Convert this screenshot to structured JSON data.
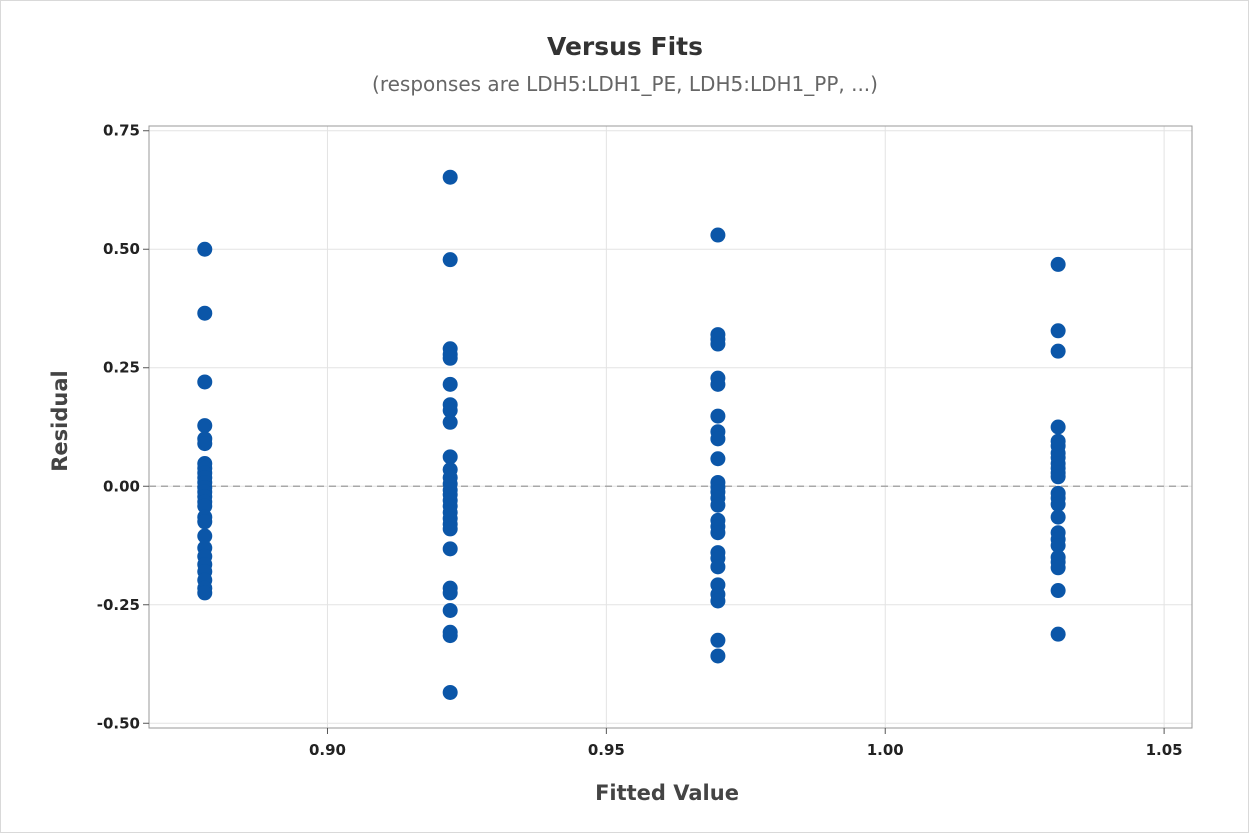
{
  "chart_data": {
    "type": "scatter",
    "title": "Versus Fits",
    "subtitle": "(responses are LDH5:LDH1_PE, LDH5:LDH1_PP, ...)",
    "xlabel": "Fitted Value",
    "ylabel": "Residual",
    "xlim": [
      0.868,
      1.055
    ],
    "ylim": [
      -0.51,
      0.76
    ],
    "x_ticks": [
      0.9,
      0.95,
      1.0,
      1.05
    ],
    "x_tick_labels": [
      "0.90",
      "0.95",
      "1.00",
      "1.05"
    ],
    "y_ticks": [
      -0.5,
      -0.25,
      0.0,
      0.25,
      0.5,
      0.75
    ],
    "y_tick_labels": [
      "-0.50",
      "-0.25",
      "0.00",
      "0.25",
      "0.50",
      "0.75"
    ],
    "reference_line_y": 0.0,
    "grid": true,
    "marker_color": "#0b56a8",
    "series": [
      {
        "points": [
          {
            "x": 0.878,
            "y": 0.5
          },
          {
            "x": 0.878,
            "y": 0.365
          },
          {
            "x": 0.878,
            "y": 0.22
          },
          {
            "x": 0.878,
            "y": 0.128
          },
          {
            "x": 0.878,
            "y": 0.1
          },
          {
            "x": 0.878,
            "y": 0.09
          },
          {
            "x": 0.878,
            "y": 0.048
          },
          {
            "x": 0.878,
            "y": 0.038
          },
          {
            "x": 0.878,
            "y": 0.028
          },
          {
            "x": 0.878,
            "y": 0.018
          },
          {
            "x": 0.878,
            "y": 0.008
          },
          {
            "x": 0.878,
            "y": -0.003
          },
          {
            "x": 0.878,
            "y": -0.012
          },
          {
            "x": 0.878,
            "y": -0.022
          },
          {
            "x": 0.878,
            "y": -0.033
          },
          {
            "x": 0.878,
            "y": -0.042
          },
          {
            "x": 0.878,
            "y": -0.065
          },
          {
            "x": 0.878,
            "y": -0.075
          },
          {
            "x": 0.878,
            "y": -0.105
          },
          {
            "x": 0.878,
            "y": -0.13
          },
          {
            "x": 0.878,
            "y": -0.148
          },
          {
            "x": 0.878,
            "y": -0.165
          },
          {
            "x": 0.878,
            "y": -0.18
          },
          {
            "x": 0.878,
            "y": -0.198
          },
          {
            "x": 0.878,
            "y": -0.215
          },
          {
            "x": 0.878,
            "y": -0.225
          },
          {
            "x": 0.922,
            "y": 0.652
          },
          {
            "x": 0.922,
            "y": 0.478
          },
          {
            "x": 0.922,
            "y": 0.29
          },
          {
            "x": 0.922,
            "y": 0.278
          },
          {
            "x": 0.922,
            "y": 0.27
          },
          {
            "x": 0.922,
            "y": 0.215
          },
          {
            "x": 0.922,
            "y": 0.172
          },
          {
            "x": 0.922,
            "y": 0.16
          },
          {
            "x": 0.922,
            "y": 0.135
          },
          {
            "x": 0.922,
            "y": 0.062
          },
          {
            "x": 0.922,
            "y": 0.035
          },
          {
            "x": 0.922,
            "y": 0.018
          },
          {
            "x": 0.922,
            "y": 0.005
          },
          {
            "x": 0.922,
            "y": -0.008
          },
          {
            "x": 0.922,
            "y": -0.018
          },
          {
            "x": 0.922,
            "y": -0.03
          },
          {
            "x": 0.922,
            "y": -0.042
          },
          {
            "x": 0.922,
            "y": -0.055
          },
          {
            "x": 0.922,
            "y": -0.068
          },
          {
            "x": 0.922,
            "y": -0.08
          },
          {
            "x": 0.922,
            "y": -0.09
          },
          {
            "x": 0.922,
            "y": -0.132
          },
          {
            "x": 0.922,
            "y": -0.215
          },
          {
            "x": 0.922,
            "y": -0.225
          },
          {
            "x": 0.922,
            "y": -0.262
          },
          {
            "x": 0.922,
            "y": -0.308
          },
          {
            "x": 0.922,
            "y": -0.315
          },
          {
            "x": 0.922,
            "y": -0.435
          },
          {
            "x": 0.97,
            "y": 0.53
          },
          {
            "x": 0.97,
            "y": 0.32
          },
          {
            "x": 0.97,
            "y": 0.31
          },
          {
            "x": 0.97,
            "y": 0.3
          },
          {
            "x": 0.97,
            "y": 0.228
          },
          {
            "x": 0.97,
            "y": 0.215
          },
          {
            "x": 0.97,
            "y": 0.148
          },
          {
            "x": 0.97,
            "y": 0.115
          },
          {
            "x": 0.97,
            "y": 0.1
          },
          {
            "x": 0.97,
            "y": 0.058
          },
          {
            "x": 0.97,
            "y": 0.008
          },
          {
            "x": 0.97,
            "y": -0.002
          },
          {
            "x": 0.97,
            "y": -0.012
          },
          {
            "x": 0.97,
            "y": -0.025
          },
          {
            "x": 0.97,
            "y": -0.04
          },
          {
            "x": 0.97,
            "y": -0.072
          },
          {
            "x": 0.97,
            "y": -0.085
          },
          {
            "x": 0.97,
            "y": -0.098
          },
          {
            "x": 0.97,
            "y": -0.14
          },
          {
            "x": 0.97,
            "y": -0.152
          },
          {
            "x": 0.97,
            "y": -0.17
          },
          {
            "x": 0.97,
            "y": -0.208
          },
          {
            "x": 0.97,
            "y": -0.228
          },
          {
            "x": 0.97,
            "y": -0.242
          },
          {
            "x": 0.97,
            "y": -0.325
          },
          {
            "x": 0.97,
            "y": -0.358
          },
          {
            "x": 1.031,
            "y": 0.468
          },
          {
            "x": 1.031,
            "y": 0.328
          },
          {
            "x": 1.031,
            "y": 0.285
          },
          {
            "x": 1.031,
            "y": 0.125
          },
          {
            "x": 1.031,
            "y": 0.095
          },
          {
            "x": 1.031,
            "y": 0.085
          },
          {
            "x": 1.031,
            "y": 0.07
          },
          {
            "x": 1.031,
            "y": 0.06
          },
          {
            "x": 1.031,
            "y": 0.048
          },
          {
            "x": 1.031,
            "y": 0.038
          },
          {
            "x": 1.031,
            "y": 0.028
          },
          {
            "x": 1.031,
            "y": 0.02
          },
          {
            "x": 1.031,
            "y": -0.015
          },
          {
            "x": 1.031,
            "y": -0.025
          },
          {
            "x": 1.031,
            "y": -0.038
          },
          {
            "x": 1.031,
            "y": -0.065
          },
          {
            "x": 1.031,
            "y": -0.098
          },
          {
            "x": 1.031,
            "y": -0.112
          },
          {
            "x": 1.031,
            "y": -0.125
          },
          {
            "x": 1.031,
            "y": -0.15
          },
          {
            "x": 1.031,
            "y": -0.16
          },
          {
            "x": 1.031,
            "y": -0.172
          },
          {
            "x": 1.031,
            "y": -0.22
          },
          {
            "x": 1.031,
            "y": -0.312
          }
        ]
      }
    ]
  }
}
